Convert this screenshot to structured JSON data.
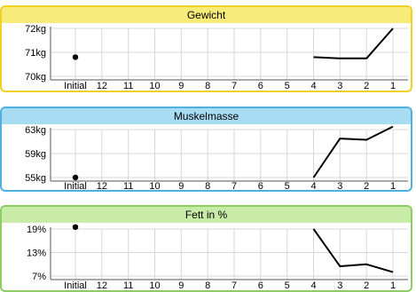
{
  "colors": {
    "gewicht_border": "#f0d020",
    "gewicht_header": "#f7eb7a",
    "muskel_border": "#4fb0dc",
    "muskel_header": "#a8dcf2",
    "fett_border": "#8ccc60",
    "fett_header": "#c9eba8",
    "grid": "#d7d7d7",
    "axis": "#555555",
    "line": "#000000"
  },
  "chart_data": [
    {
      "type": "line",
      "title": "Gewicht",
      "categories": [
        "Initial",
        "12",
        "11",
        "10",
        "9",
        "8",
        "7",
        "6",
        "5",
        "4",
        "3",
        "2",
        "1"
      ],
      "y_ticks": [
        {
          "label": "72kg",
          "value": 72
        },
        {
          "label": "71kg",
          "value": 71
        },
        {
          "label": "70kg",
          "value": 70
        }
      ],
      "ylim": [
        70,
        72
      ],
      "series": [
        {
          "values": [
            70.8,
            null,
            null,
            null,
            null,
            null,
            null,
            null,
            null,
            70.8,
            70.75,
            70.75,
            72
          ]
        }
      ]
    },
    {
      "type": "line",
      "title": "Muskelmasse",
      "categories": [
        "Initial",
        "12",
        "11",
        "10",
        "9",
        "8",
        "7",
        "6",
        "5",
        "4",
        "3",
        "2",
        "1"
      ],
      "y_ticks": [
        {
          "label": "63kg",
          "value": 63
        },
        {
          "label": "59kg",
          "value": 59
        },
        {
          "label": "55kg",
          "value": 55
        }
      ],
      "ylim": [
        55,
        63
      ],
      "series": [
        {
          "values": [
            55,
            null,
            null,
            null,
            null,
            null,
            null,
            null,
            null,
            55,
            61.5,
            61.3,
            63.5
          ]
        }
      ]
    },
    {
      "type": "line",
      "title": "Fett in %",
      "categories": [
        "Initial",
        "12",
        "11",
        "10",
        "9",
        "8",
        "7",
        "6",
        "5",
        "4",
        "3",
        "2",
        "1"
      ],
      "y_ticks": [
        {
          "label": "19%",
          "value": 19
        },
        {
          "label": "13%",
          "value": 13
        },
        {
          "label": "7%",
          "value": 7
        }
      ],
      "ylim": [
        7,
        19
      ],
      "series": [
        {
          "values": [
            19.5,
            null,
            null,
            null,
            null,
            null,
            null,
            null,
            null,
            19,
            9.5,
            10,
            8
          ]
        }
      ]
    }
  ]
}
